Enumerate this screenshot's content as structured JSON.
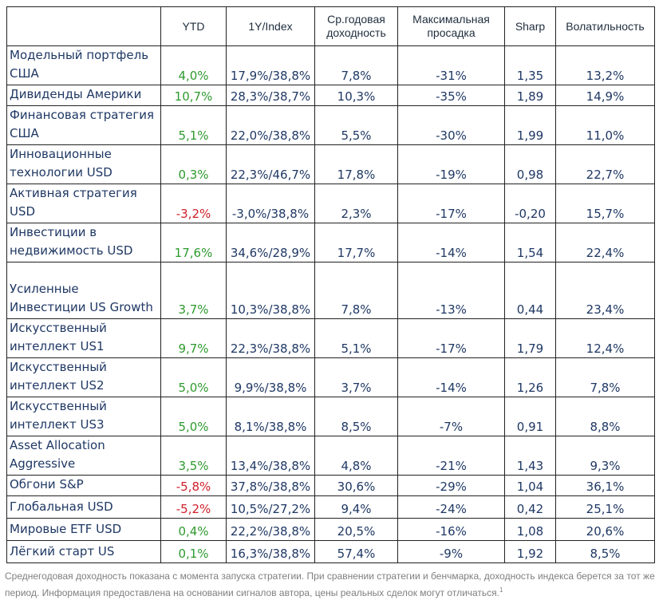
{
  "columns": [
    "",
    "YTD",
    "1Y/Index",
    "Ср.годовая доходность",
    "Максимальная просадка",
    "Sharp",
    "Волатильность"
  ],
  "rows": [
    {
      "name": "Модельный портфель США",
      "ytd": "4,0%",
      "trend": "pos",
      "y1": "17,9%/38,8%",
      "avg": "7,8%",
      "dd": "-31%",
      "sharp": "1,35",
      "vol": "13,2%"
    },
    {
      "name": "Дивиденды Америки",
      "ytd": "10,7%",
      "trend": "pos",
      "y1": "28,3%/38,7%",
      "avg": "10,3%",
      "dd": "-35%",
      "sharp": "1,89",
      "vol": "14,9%"
    },
    {
      "name": "Финансовая стратегия США",
      "ytd": "5,1%",
      "trend": "pos",
      "y1": "22,0%/38,8%",
      "avg": "5,5%",
      "dd": "-30%",
      "sharp": "1,99",
      "vol": "11,0%"
    },
    {
      "name": "Инновационные технологии USD",
      "ytd": "0,3%",
      "trend": "pos",
      "y1": "22,3%/46,7%",
      "avg": "17,8%",
      "dd": "-19%",
      "sharp": "0,98",
      "vol": "22,7%"
    },
    {
      "name": "Активная стратегия USD",
      "ytd": "-3,2%",
      "trend": "neg",
      "y1": "-3,0%/38,8%",
      "avg": "2,3%",
      "dd": "-17%",
      "sharp": "-0,20",
      "vol": "15,7%"
    },
    {
      "name": "Инвестиции в недвижимость USD",
      "ytd": "17,6%",
      "trend": "pos",
      "y1": "34,6%/28,9%",
      "avg": "17,7%",
      "dd": "-14%",
      "sharp": "1,54",
      "vol": "22,4%"
    },
    {
      "name": "Усиленные Инвестиции US Growth",
      "ytd": "3,7%",
      "trend": "pos",
      "y1": "10,3%/38,8%",
      "avg": "7,8%",
      "dd": "-13%",
      "sharp": "0,44",
      "vol": "23,4%"
    },
    {
      "name": "Искусственный интеллект US1",
      "ytd": "9,7%",
      "trend": "pos",
      "y1": "22,3%/38,8%",
      "avg": "5,1%",
      "dd": "-17%",
      "sharp": "1,79",
      "vol": "12,4%"
    },
    {
      "name": "Искусственный интеллект US2",
      "ytd": "5,0%",
      "trend": "pos",
      "y1": "9,9%/38,8%",
      "avg": "3,7%",
      "dd": "-14%",
      "sharp": "1,26",
      "vol": "7,8%"
    },
    {
      "name": "Искусственный интеллект US3",
      "ytd": "5,0%",
      "trend": "pos",
      "y1": "8,1%/38,8%",
      "avg": "8,5%",
      "dd": "-7%",
      "sharp": "0,91",
      "vol": "8,8%"
    },
    {
      "name": "Asset Allocation Aggressive",
      "ytd": "3,5%",
      "trend": "pos",
      "y1": "13,4%/38,8%",
      "avg": "4,8%",
      "dd": "-21%",
      "sharp": "1,43",
      "vol": "9,3%"
    },
    {
      "name": "Обгони S&P",
      "ytd": "-5,8%",
      "trend": "neg",
      "y1": "37,8%/38,8%",
      "avg": "30,6%",
      "dd": "-29%",
      "sharp": "1,04",
      "vol": "36,1%"
    },
    {
      "name": "Глобальная USD",
      "ytd": "-5,2%",
      "trend": "neg",
      "y1": "10,5%/27,2%",
      "avg": "9,4%",
      "dd": "-24%",
      "sharp": "0,42",
      "vol": "25,1%"
    },
    {
      "name": "Мировые ETF USD",
      "ytd": "0,4%",
      "trend": "pos",
      "y1": "22,2%/38,8%",
      "avg": "20,5%",
      "dd": "-16%",
      "sharp": "1,08",
      "vol": "20,6%"
    },
    {
      "name": "Лёгкий старт US",
      "ytd": "0,1%",
      "trend": "pos",
      "y1": "16,3%/38,8%",
      "avg": "57,4%",
      "dd": "-9%",
      "sharp": "1,92",
      "vol": "8,5%"
    }
  ],
  "footnote": "Среднегодовая доходность показана с момента запуска стратегии. При сравнении стратегии и бенчмарка, доходность индекса берется за тот же период. Информация предоставлена на основании сигналов автора, цены реальных сделок могут отличаться.",
  "footnote_mark": "1",
  "colors": {
    "positive": "#2e9a2e",
    "negative": "#d0202a",
    "text": "#1f3864",
    "footnote": "#7f7f7f"
  }
}
